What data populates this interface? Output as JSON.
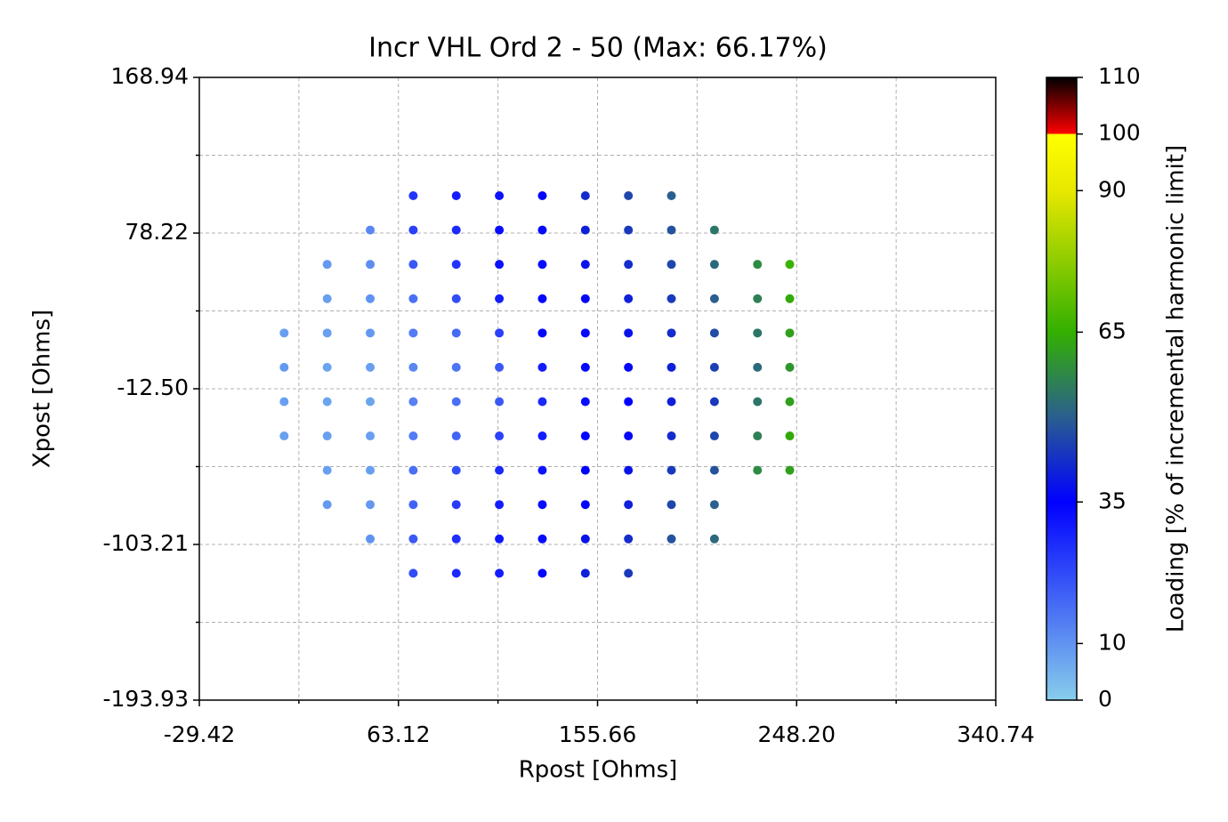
{
  "chart_data": {
    "type": "scatter",
    "title": "Incr VHL Ord 2 - 50 (Max: 66.17%)",
    "xlabel": "Rpost [Ohms]",
    "ylabel": "Xpost [Ohms]",
    "xlim": [
      -29.42,
      340.74
    ],
    "ylim": [
      -193.93,
      168.94
    ],
    "xticks": [
      -29.42,
      63.12,
      155.66,
      {
        "value": 248.2,
        "label": "248.20"
      },
      340.74
    ],
    "yticks": [
      -193.93,
      -103.21,
      {
        "value": -12.5,
        "label": "-12.50"
      },
      78.22,
      168.94
    ],
    "xminorticks": [
      16.85,
      109.39,
      201.93,
      294.47
    ],
    "yminorticks": [
      -148.57,
      -57.855,
      32.86,
      123.58
    ],
    "grid": true,
    "colorbar": {
      "label": "Loading [% of incremental harmonic limit]",
      "lim": [
        0,
        110
      ],
      "ticks": [
        0,
        10,
        35,
        65,
        90,
        100,
        110
      ]
    },
    "colormap": [
      {
        "value": 0,
        "color": "#87ceeb"
      },
      {
        "value": 35,
        "color": "#0000ff"
      },
      {
        "value": 50,
        "color": "#2a5f8f"
      },
      {
        "value": 65,
        "color": "#33b000"
      },
      {
        "value": 90,
        "color": "#e8e800"
      },
      {
        "value": 100,
        "color": "#ffff00"
      },
      {
        "value": 100,
        "color": "#ff0000"
      },
      {
        "value": 110,
        "color": "#000000"
      }
    ],
    "x": [
      10,
      10,
      10,
      10,
      30,
      30,
      30,
      30,
      30,
      30,
      30,
      30,
      50,
      50,
      50,
      50,
      50,
      50,
      50,
      50,
      50,
      50,
      70,
      70,
      70,
      70,
      70,
      70,
      70,
      70,
      70,
      70,
      70,
      70,
      90,
      90,
      90,
      90,
      90,
      90,
      90,
      90,
      90,
      90,
      90,
      90,
      110,
      110,
      110,
      110,
      110,
      110,
      110,
      110,
      110,
      110,
      110,
      110,
      130,
      130,
      130,
      130,
      130,
      130,
      130,
      130,
      130,
      130,
      130,
      130,
      150,
      150,
      150,
      150,
      150,
      150,
      150,
      150,
      150,
      150,
      150,
      150,
      170,
      170,
      170,
      170,
      170,
      170,
      170,
      170,
      170,
      170,
      170,
      170,
      190,
      190,
      190,
      190,
      190,
      190,
      190,
      190,
      190,
      190,
      190,
      210,
      210,
      210,
      210,
      210,
      210,
      210,
      210,
      210,
      210,
      230,
      230,
      230,
      230,
      230,
      230,
      230,
      245,
      245,
      245,
      245,
      245,
      245,
      245
    ],
    "y": [
      -40,
      -20,
      0,
      20,
      -80,
      -60,
      -40,
      -20,
      0,
      20,
      40,
      60,
      -100,
      -80,
      -60,
      -40,
      -20,
      0,
      20,
      40,
      60,
      80,
      -120,
      -100,
      -80,
      -60,
      -40,
      -20,
      0,
      20,
      40,
      60,
      80,
      100,
      -120,
      -100,
      -80,
      -60,
      -40,
      -20,
      0,
      20,
      40,
      60,
      80,
      100,
      -120,
      -100,
      -80,
      -60,
      -40,
      -20,
      0,
      20,
      40,
      60,
      80,
      100,
      -120,
      -100,
      -80,
      -60,
      -40,
      -20,
      0,
      20,
      40,
      60,
      80,
      100,
      -120,
      -100,
      -80,
      -60,
      -40,
      -20,
      0,
      20,
      40,
      60,
      80,
      100,
      -120,
      -100,
      -80,
      -60,
      -40,
      -20,
      0,
      20,
      40,
      60,
      80,
      100,
      -100,
      -80,
      -60,
      -40,
      -20,
      0,
      20,
      40,
      60,
      80,
      100,
      -100,
      -80,
      -60,
      -40,
      -20,
      0,
      20,
      40,
      60,
      80,
      -60,
      -40,
      -20,
      0,
      20,
      40,
      60,
      -60,
      -40,
      -20,
      0,
      20,
      40,
      60
    ],
    "values": [
      8,
      8,
      9,
      8,
      9,
      8,
      8,
      7,
      7,
      8,
      8,
      9,
      10,
      9,
      8,
      8,
      7,
      8,
      9,
      10,
      11,
      12,
      22,
      20,
      18,
      16,
      14,
      13,
      12,
      14,
      16,
      20,
      24,
      26,
      28,
      27,
      25,
      22,
      18,
      16,
      15,
      17,
      22,
      26,
      28,
      30,
      30,
      31,
      30,
      28,
      24,
      20,
      20,
      24,
      30,
      32,
      33,
      32,
      34,
      33,
      33,
      32,
      30,
      28,
      30,
      34,
      34,
      33,
      34,
      36,
      40,
      38,
      36,
      35,
      34,
      33,
      34,
      34,
      36,
      38,
      40,
      42,
      44,
      42,
      40,
      38,
      36,
      35,
      36,
      38,
      40,
      42,
      44,
      46,
      48,
      46,
      44,
      42,
      40,
      40,
      42,
      44,
      46,
      48,
      50,
      52,
      50,
      48,
      46,
      44,
      45,
      47,
      50,
      52,
      54,
      58,
      56,
      54,
      52,
      54,
      56,
      58,
      62,
      64,
      62,
      60,
      62,
      64,
      66
    ]
  }
}
